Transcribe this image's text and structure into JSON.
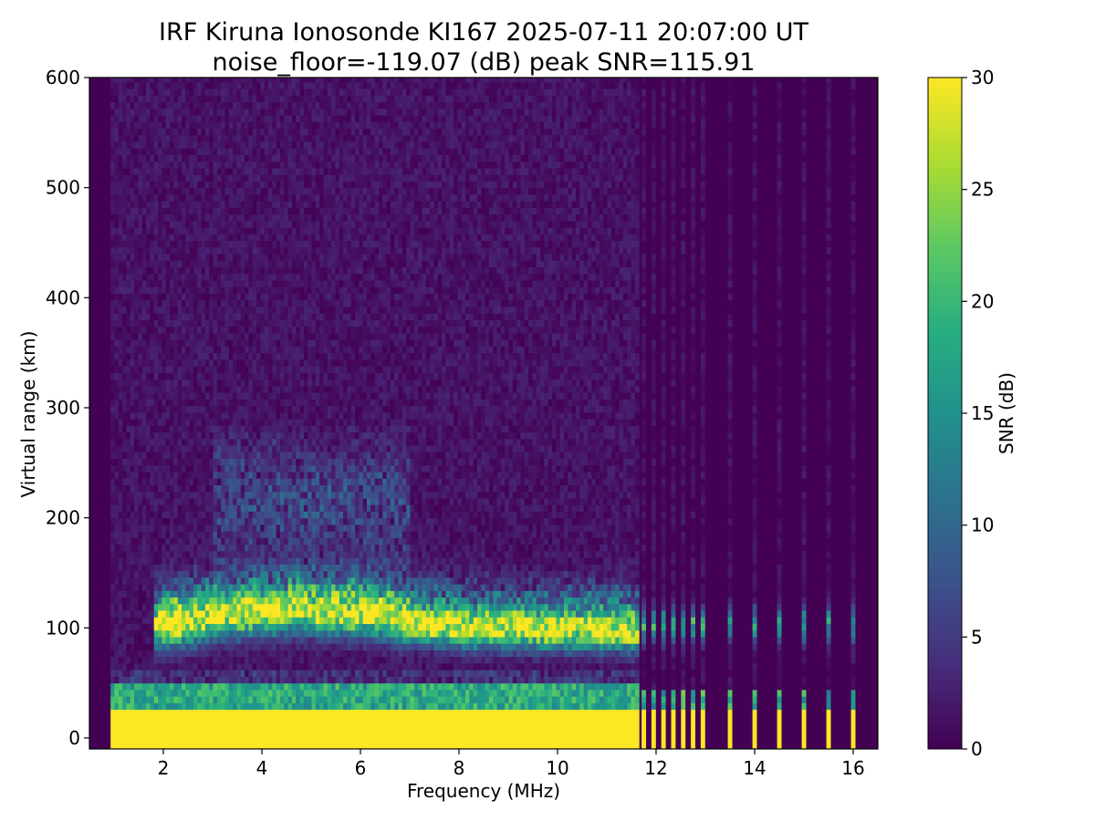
{
  "chart_data": {
    "type": "heatmap",
    "title": "IRF Kiruna Ionosonde KI167 2025-07-11 20:07:00  UT",
    "subtitle": "noise_floor=-119.07 (dB) peak SNR=115.91",
    "xlabel": "Frequency (MHz)",
    "ylabel": "Virtual range (km)",
    "xlim": [
      0.5,
      16.5
    ],
    "ylim": [
      -10,
      600
    ],
    "x_ticks": [
      2,
      4,
      6,
      8,
      10,
      12,
      14,
      16
    ],
    "y_ticks": [
      0,
      100,
      200,
      300,
      400,
      500,
      600
    ],
    "grid": false,
    "colorbar": {
      "label": "SNR (dB)",
      "colormap": "viridis",
      "range": [
        0,
        30
      ],
      "ticks": [
        0,
        5,
        10,
        15,
        20,
        25,
        30
      ]
    },
    "data_start_freq": 0.93,
    "sweep_end_freq": 11.65,
    "discrete_channels_mhz": [
      11.75,
      11.95,
      12.15,
      12.35,
      12.55,
      12.75,
      12.95,
      13.5,
      14.0,
      14.5,
      15.0,
      15.5,
      16.0
    ],
    "features": {
      "ground_clutter": {
        "range_km": [
          -10,
          22
        ],
        "snr_db": 30
      },
      "clutter_band": {
        "range_km": [
          22,
          45
        ],
        "snr_db": 18
      },
      "e_layer_trace": [
        {
          "f": 2.0,
          "h": 100
        },
        {
          "f": 2.5,
          "h": 103
        },
        {
          "f": 3.0,
          "h": 108
        },
        {
          "f": 3.5,
          "h": 110
        },
        {
          "f": 4.0,
          "h": 112
        },
        {
          "f": 4.5,
          "h": 113
        },
        {
          "f": 5.0,
          "h": 113
        },
        {
          "f": 5.5,
          "h": 112
        },
        {
          "f": 6.0,
          "h": 111
        },
        {
          "f": 6.5,
          "h": 108
        },
        {
          "f": 7.0,
          "h": 103
        },
        {
          "f": 7.5,
          "h": 100
        },
        {
          "f": 8.0,
          "h": 97
        },
        {
          "f": 8.5,
          "h": 97
        },
        {
          "f": 9.0,
          "h": 97
        },
        {
          "f": 9.5,
          "h": 96
        },
        {
          "f": 10.0,
          "h": 96
        },
        {
          "f": 10.5,
          "h": 96
        },
        {
          "f": 11.0,
          "h": 95
        },
        {
          "f": 11.6,
          "h": 95
        }
      ],
      "spread_echo_region": {
        "freq_mhz": [
          3.0,
          7.0
        ],
        "range_km": [
          150,
          280
        ]
      }
    }
  }
}
